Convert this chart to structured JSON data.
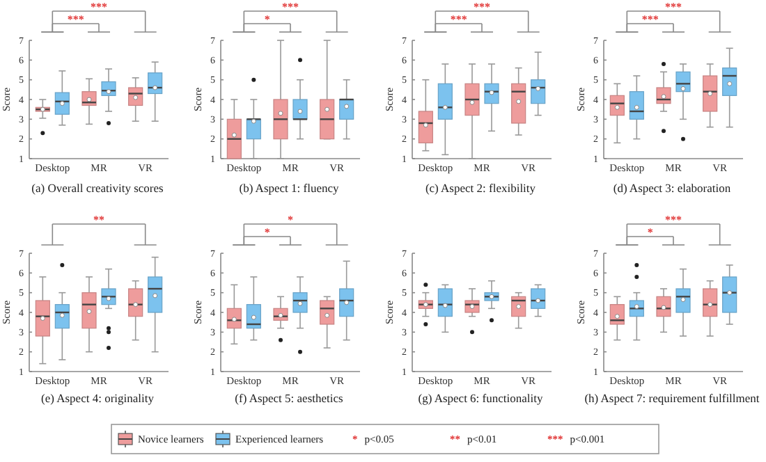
{
  "chart_data": [
    {
      "type": "box",
      "title": "(a) Overall creativity scores",
      "ylabel": "Score",
      "categories": [
        "Desktop",
        "MR",
        "VR"
      ],
      "ylim": [
        1,
        7
      ],
      "yticks": [
        1,
        2,
        3,
        4,
        5,
        6,
        7
      ],
      "legend": "bottom",
      "annotations": [
        "***",
        "***"
      ],
      "series": [
        {
          "name": "Novice learners",
          "color": "#ee9c9c",
          "boxes": [
            {
              "low": 3.05,
              "q1": 3.4,
              "median": 3.5,
              "q3": 3.6,
              "high": 4.0,
              "mean": 3.5,
              "outliers": [
                2.3
              ]
            },
            {
              "low": 2.75,
              "q1": 3.7,
              "median": 3.85,
              "q3": 4.4,
              "high": 5.05,
              "mean": 4.0
            },
            {
              "low": 2.9,
              "q1": 3.7,
              "median": 4.3,
              "q3": 4.6,
              "high": 5.1,
              "mean": 4.1
            }
          ]
        },
        {
          "name": "Experienced learners",
          "color": "#7cc2ee",
          "boxes": [
            {
              "low": 2.7,
              "q1": 3.25,
              "median": 3.9,
              "q3": 4.35,
              "high": 5.45,
              "mean": 3.8
            },
            {
              "low": 3.4,
              "q1": 4.2,
              "median": 4.45,
              "q3": 4.9,
              "high": 5.55,
              "mean": 4.4,
              "outliers": [
                2.8
              ]
            },
            {
              "low": 2.9,
              "q1": 4.3,
              "median": 4.6,
              "q3": 5.35,
              "high": 5.9,
              "mean": 4.6
            }
          ]
        }
      ]
    },
    {
      "type": "box",
      "title": "(b) Aspect 1: fluency",
      "ylabel": "Score",
      "categories": [
        "Desktop",
        "MR",
        "VR"
      ],
      "ylim": [
        1,
        7
      ],
      "yticks": [
        1,
        2,
        3,
        4,
        5,
        6,
        7
      ],
      "annotations": [
        "*",
        "***"
      ],
      "series": [
        {
          "color": "#ee9c9c",
          "boxes": [
            {
              "low": 1,
              "q1": 1,
              "median": 2,
              "q3": 3,
              "high": 4,
              "mean": 2.2
            },
            {
              "low": 1,
              "q1": 2,
              "median": 3,
              "q3": 4,
              "high": 7,
              "mean": 3.3
            },
            {
              "low": 2,
              "q1": 2,
              "median": 3,
              "q3": 4,
              "high": 7,
              "mean": 3.5
            }
          ]
        },
        {
          "color": "#7cc2ee",
          "boxes": [
            {
              "low": 1,
              "q1": 2,
              "median": 3,
              "q3": 3,
              "high": 4,
              "mean": 2.9,
              "outliers": [
                5
              ]
            },
            {
              "low": 2,
              "q1": 3,
              "median": 3,
              "q3": 4,
              "high": 5,
              "mean": 3.4,
              "outliers": [
                6
              ]
            },
            {
              "low": 2,
              "q1": 3,
              "median": 4,
              "q3": 4,
              "high": 5,
              "mean": 3.65
            }
          ]
        }
      ]
    },
    {
      "type": "box",
      "title": "(c) Aspect 2: flexibility",
      "ylabel": "Score",
      "categories": [
        "Desktop",
        "MR",
        "VR"
      ],
      "ylim": [
        1,
        7
      ],
      "yticks": [
        1,
        2,
        3,
        4,
        5,
        6,
        7
      ],
      "annotations": [
        "***",
        "***"
      ],
      "series": [
        {
          "color": "#ee9c9c",
          "boxes": [
            {
              "low": 1.4,
              "q1": 1.8,
              "median": 2.8,
              "q3": 3.4,
              "high": 5.0,
              "mean": 2.7
            },
            {
              "low": 1.0,
              "q1": 3.2,
              "median": 4.0,
              "q3": 4.8,
              "high": 5.8,
              "mean": 3.85
            },
            {
              "low": 2.2,
              "q1": 2.8,
              "median": 4.4,
              "q3": 4.8,
              "high": 5.6,
              "mean": 3.9
            }
          ]
        },
        {
          "color": "#7cc2ee",
          "boxes": [
            {
              "low": 1.2,
              "q1": 3.0,
              "median": 3.6,
              "q3": 4.8,
              "high": 5.8,
              "mean": 3.6
            },
            {
              "low": 2.4,
              "q1": 3.8,
              "median": 4.4,
              "q3": 4.8,
              "high": 5.8,
              "mean": 4.35
            },
            {
              "low": 3.2,
              "q1": 3.8,
              "median": 4.6,
              "q3": 5.0,
              "high": 6.4,
              "mean": 4.55
            }
          ]
        }
      ]
    },
    {
      "type": "box",
      "title": "(d) Aspect 3: elaboration",
      "ylabel": "Score",
      "categories": [
        "Desktop",
        "MR",
        "VR"
      ],
      "ylim": [
        1,
        7
      ],
      "yticks": [
        1,
        2,
        3,
        4,
        5,
        6,
        7
      ],
      "annotations": [
        "***",
        "***"
      ],
      "series": [
        {
          "color": "#ee9c9c",
          "boxes": [
            {
              "low": 1.8,
              "q1": 3.2,
              "median": 3.8,
              "q3": 4.2,
              "high": 4.8,
              "mean": 3.6
            },
            {
              "low": 3.4,
              "q1": 3.8,
              "median": 4.0,
              "q3": 4.6,
              "high": 5.4,
              "mean": 4.15,
              "outliers": [
                2.4,
                5.8
              ]
            },
            {
              "low": 2.6,
              "q1": 3.4,
              "median": 4.4,
              "q3": 5.2,
              "high": 5.8,
              "mean": 4.3
            }
          ]
        },
        {
          "color": "#7cc2ee",
          "boxes": [
            {
              "low": 2.0,
              "q1": 3.0,
              "median": 3.4,
              "q3": 4.4,
              "high": 5.2,
              "mean": 3.6
            },
            {
              "low": 3.0,
              "q1": 4.4,
              "median": 4.8,
              "q3": 5.4,
              "high": 5.8,
              "mean": 4.55,
              "outliers": [
                2.0
              ]
            },
            {
              "low": 2.6,
              "q1": 4.2,
              "median": 5.2,
              "q3": 5.6,
              "high": 6.6,
              "mean": 4.8
            }
          ]
        }
      ]
    },
    {
      "type": "box",
      "title": "(e) Aspect 4: originality",
      "ylabel": "Score",
      "categories": [
        "Desktop",
        "MR",
        "VR"
      ],
      "ylim": [
        1,
        7
      ],
      "yticks": [
        1,
        2,
        3,
        4,
        5,
        6,
        7
      ],
      "annotations": [
        "**"
      ],
      "series": [
        {
          "color": "#ee9c9c",
          "boxes": [
            {
              "low": 1.4,
              "q1": 2.8,
              "median": 3.8,
              "q3": 4.6,
              "high": 5.8,
              "mean": 3.7
            },
            {
              "low": 2.0,
              "q1": 3.2,
              "median": 4.4,
              "q3": 5.0,
              "high": 5.8,
              "mean": 4.05
            },
            {
              "low": 2.6,
              "q1": 3.8,
              "median": 4.4,
              "q3": 5.2,
              "high": 5.6,
              "mean": 4.4
            }
          ]
        },
        {
          "color": "#7cc2ee",
          "boxes": [
            {
              "low": 1.6,
              "q1": 3.2,
              "median": 4.0,
              "q3": 4.4,
              "high": 5.0,
              "mean": 3.85,
              "outliers": [
                6.4
              ]
            },
            {
              "low": 4.2,
              "q1": 4.4,
              "median": 4.8,
              "q3": 5.2,
              "high": 6.2,
              "mean": 4.7,
              "outliers": [
                3.2,
                3.0,
                2.2
              ]
            },
            {
              "low": 2.0,
              "q1": 4.0,
              "median": 5.2,
              "q3": 5.8,
              "high": 6.8,
              "mean": 4.85
            }
          ]
        }
      ]
    },
    {
      "type": "box",
      "title": "(f) Aspect 5: aesthetics",
      "ylabel": "Score",
      "categories": [
        "Desktop",
        "MR",
        "VR"
      ],
      "ylim": [
        1,
        7
      ],
      "yticks": [
        1,
        2,
        3,
        4,
        5,
        6,
        7
      ],
      "annotations": [
        "*",
        "*"
      ],
      "series": [
        {
          "color": "#ee9c9c",
          "boxes": [
            {
              "low": 2.4,
              "q1": 3.2,
              "median": 3.6,
              "q3": 4.2,
              "high": 5.4,
              "mean": 3.65
            },
            {
              "low": 3.2,
              "q1": 3.6,
              "median": 3.8,
              "q3": 4.2,
              "high": 4.8,
              "mean": 3.85,
              "outliers": [
                2.6
              ]
            },
            {
              "low": 2.2,
              "q1": 3.4,
              "median": 4.2,
              "q3": 4.6,
              "high": 4.8,
              "mean": 3.85
            }
          ]
        },
        {
          "color": "#7cc2ee",
          "boxes": [
            {
              "low": 2.6,
              "q1": 3.2,
              "median": 3.4,
              "q3": 4.4,
              "high": 5.8,
              "mean": 3.75
            },
            {
              "low": 3.2,
              "q1": 4.0,
              "median": 4.6,
              "q3": 5.0,
              "high": 5.8,
              "mean": 4.45,
              "outliers": [
                2.0
              ]
            },
            {
              "low": 2.6,
              "q1": 3.8,
              "median": 4.6,
              "q3": 5.2,
              "high": 6.6,
              "mean": 4.5
            }
          ]
        }
      ]
    },
    {
      "type": "box",
      "title": "(g) Aspect 6: functionality",
      "ylabel": "Score",
      "categories": [
        "Desktop",
        "MR",
        "VR"
      ],
      "ylim": [
        1,
        7
      ],
      "yticks": [
        1,
        2,
        3,
        4,
        5,
        6,
        7
      ],
      "series": [
        {
          "color": "#ee9c9c",
          "boxes": [
            {
              "low": 3.8,
              "q1": 4.2,
              "median": 4.4,
              "q3": 4.6,
              "high": 5.0,
              "mean": 4.4,
              "outliers": [
                5.4,
                3.4
              ]
            },
            {
              "low": 3.8,
              "q1": 4.0,
              "median": 4.4,
              "q3": 4.6,
              "high": 5.2,
              "mean": 4.3,
              "outliers": [
                3.0
              ]
            },
            {
              "low": 3.2,
              "q1": 3.8,
              "median": 4.6,
              "q3": 4.8,
              "high": 5.0,
              "mean": 4.3
            }
          ]
        },
        {
          "color": "#7cc2ee",
          "boxes": [
            {
              "low": 3.0,
              "q1": 3.8,
              "median": 4.4,
              "q3": 5.2,
              "high": 5.4,
              "mean": 4.35
            },
            {
              "low": 4.2,
              "q1": 4.6,
              "median": 4.8,
              "q3": 5.0,
              "high": 5.6,
              "mean": 4.8,
              "outliers": [
                3.6
              ]
            },
            {
              "low": 3.8,
              "q1": 4.2,
              "median": 4.6,
              "q3": 5.2,
              "high": 5.4,
              "mean": 4.6
            }
          ]
        }
      ]
    },
    {
      "type": "box",
      "title": "(h) Aspect 7: requirement fulfillment",
      "ylabel": "Score",
      "categories": [
        "Desktop",
        "MR",
        "VR"
      ],
      "ylim": [
        1,
        7
      ],
      "yticks": [
        1,
        2,
        3,
        4,
        5,
        6,
        7
      ],
      "annotations": [
        "*",
        "***"
      ],
      "series": [
        {
          "color": "#ee9c9c",
          "boxes": [
            {
              "low": 2.6,
              "q1": 3.4,
              "median": 3.6,
              "q3": 4.4,
              "high": 4.8,
              "mean": 3.8
            },
            {
              "low": 3.0,
              "q1": 3.8,
              "median": 4.2,
              "q3": 4.8,
              "high": 5.2,
              "mean": 4.25
            },
            {
              "low": 2.8,
              "q1": 3.8,
              "median": 4.4,
              "q3": 5.2,
              "high": 5.6,
              "mean": 4.4
            }
          ]
        },
        {
          "color": "#7cc2ee",
          "boxes": [
            {
              "low": 2.6,
              "q1": 3.8,
              "median": 4.2,
              "q3": 4.6,
              "high": 5.0,
              "mean": 4.3,
              "outliers": [
                5.8,
                6.4
              ]
            },
            {
              "low": 2.8,
              "q1": 4.0,
              "median": 4.8,
              "q3": 5.2,
              "high": 6.2,
              "mean": 4.65
            },
            {
              "low": 3.4,
              "q1": 4.0,
              "median": 5.0,
              "q3": 5.8,
              "high": 6.4,
              "mean": 5.0
            }
          ]
        }
      ]
    },
    {
      "type": "other",
      "annotations": [
        "* p<0.05",
        "** p<0.01",
        "*** p<0.001"
      ]
    }
  ]
}
